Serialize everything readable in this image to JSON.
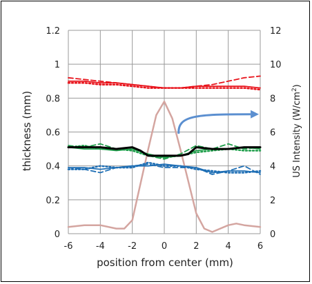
{
  "chart_data": {
    "type": "line",
    "title": "",
    "xlabel": "position from center (mm)",
    "ylabel": "thickness (mm)",
    "y2label_main": "US Intensity (W/cm",
    "y2label_sup": "2",
    "y2label_end": ")",
    "xlim": [
      -6,
      6
    ],
    "ylim": [
      0,
      1.2
    ],
    "y2lim": [
      0,
      12
    ],
    "xticks": [
      "-6",
      "-4",
      "-2",
      "0",
      "2",
      "4",
      "6"
    ],
    "yticks": [
      "0",
      "0.2",
      "0.4",
      "0.6",
      "0.8",
      "1",
      "1.2"
    ],
    "y2ticks": [
      "0",
      "2",
      "4",
      "6",
      "8",
      "10",
      "12"
    ],
    "grid": "vertical and horizontal",
    "legend": "none",
    "colors": {
      "red": "#e8131b",
      "green": "#1e9e4a",
      "black": "#000000",
      "blue": "#1f6fb5",
      "intensity": "#d4a5a0",
      "arrow": "#5b8fd0",
      "grid": "#999999"
    },
    "series": [
      {
        "axis": "left",
        "color": "red",
        "style": "solid",
        "x": [
          -6,
          -5,
          -4,
          -3,
          -2,
          -1,
          0,
          1,
          2,
          3,
          4,
          5,
          6
        ],
        "y": [
          0.9,
          0.9,
          0.89,
          0.89,
          0.88,
          0.87,
          0.86,
          0.86,
          0.87,
          0.87,
          0.87,
          0.87,
          0.86
        ]
      },
      {
        "axis": "left",
        "color": "red",
        "style": "dash",
        "x": [
          -6,
          -5,
          -4,
          -3,
          -2,
          -1,
          0,
          1,
          2,
          3,
          4,
          5,
          6
        ],
        "y": [
          0.92,
          0.91,
          0.9,
          0.89,
          0.88,
          0.87,
          0.86,
          0.86,
          0.87,
          0.88,
          0.9,
          0.92,
          0.93
        ]
      },
      {
        "axis": "left",
        "color": "red",
        "style": "dot",
        "x": [
          -6,
          -5,
          -4,
          -3,
          -2,
          -1,
          0,
          1,
          2,
          3,
          4,
          5,
          6
        ],
        "y": [
          0.89,
          0.89,
          0.88,
          0.88,
          0.87,
          0.86,
          0.86,
          0.86,
          0.86,
          0.86,
          0.86,
          0.86,
          0.85
        ]
      },
      {
        "axis": "left",
        "color": "green",
        "style": "solid",
        "x": [
          -6,
          -5,
          -4,
          -3,
          -2,
          -1,
          0,
          1,
          2,
          3,
          4,
          5,
          6
        ],
        "y": [
          0.51,
          0.5,
          0.5,
          0.49,
          0.5,
          0.47,
          0.45,
          0.46,
          0.49,
          0.5,
          0.5,
          0.51,
          0.5
        ]
      },
      {
        "axis": "left",
        "color": "green",
        "style": "dash",
        "x": [
          -6,
          -5,
          -4,
          -3,
          -2,
          -1,
          0,
          1,
          2,
          3,
          4,
          5,
          6
        ],
        "y": [
          0.52,
          0.51,
          0.53,
          0.5,
          0.51,
          0.46,
          0.44,
          0.47,
          0.52,
          0.5,
          0.53,
          0.5,
          0.51
        ]
      },
      {
        "axis": "left",
        "color": "green",
        "style": "dot",
        "x": [
          -6,
          -5,
          -4,
          -3,
          -2,
          -1,
          0,
          1,
          2,
          3,
          4,
          5,
          6
        ],
        "y": [
          0.51,
          0.52,
          0.5,
          0.5,
          0.49,
          0.46,
          0.45,
          0.46,
          0.48,
          0.49,
          0.5,
          0.49,
          0.49
        ]
      },
      {
        "axis": "left",
        "color": "black",
        "style": "solid",
        "x": [
          -6,
          -5,
          -4,
          -3,
          -2,
          -1.5,
          -1,
          0,
          1,
          1.5,
          2,
          3,
          4,
          5,
          6
        ],
        "y": [
          0.51,
          0.51,
          0.51,
          0.5,
          0.51,
          0.49,
          0.46,
          0.46,
          0.46,
          0.47,
          0.51,
          0.5,
          0.5,
          0.51,
          0.51
        ]
      },
      {
        "axis": "left",
        "color": "blue",
        "style": "solid",
        "x": [
          -6,
          -5,
          -4,
          -3,
          -2,
          -1,
          0,
          1,
          2,
          3,
          4,
          5,
          6
        ],
        "y": [
          0.39,
          0.39,
          0.38,
          0.39,
          0.4,
          0.4,
          0.41,
          0.4,
          0.39,
          0.36,
          0.37,
          0.37,
          0.36
        ]
      },
      {
        "axis": "left",
        "color": "blue",
        "style": "dash",
        "x": [
          -6,
          -5,
          -4,
          -3,
          -2,
          -1,
          0,
          1,
          2,
          3,
          4,
          5,
          6
        ],
        "y": [
          0.39,
          0.38,
          0.36,
          0.39,
          0.4,
          0.41,
          0.39,
          0.39,
          0.39,
          0.35,
          0.37,
          0.4,
          0.35
        ]
      },
      {
        "axis": "left",
        "color": "blue",
        "style": "dot",
        "x": [
          -6,
          -5,
          -4,
          -3,
          -2,
          -1,
          0,
          1,
          2,
          3,
          4,
          5,
          6
        ],
        "y": [
          0.38,
          0.38,
          0.4,
          0.39,
          0.39,
          0.42,
          0.4,
          0.4,
          0.38,
          0.37,
          0.36,
          0.36,
          0.37
        ]
      },
      {
        "axis": "right",
        "color": "intensity",
        "style": "solid",
        "x": [
          -6,
          -5,
          -4,
          -3,
          -2.5,
          -2,
          -1,
          -0.5,
          0,
          0.5,
          1,
          2,
          2.5,
          3,
          4,
          4.5,
          5,
          6
        ],
        "y": [
          0.4,
          0.5,
          0.5,
          0.3,
          0.3,
          0.8,
          5.0,
          7.0,
          7.8,
          6.8,
          5.0,
          1.2,
          0.3,
          0.1,
          0.5,
          0.6,
          0.5,
          0.4
        ]
      }
    ]
  }
}
